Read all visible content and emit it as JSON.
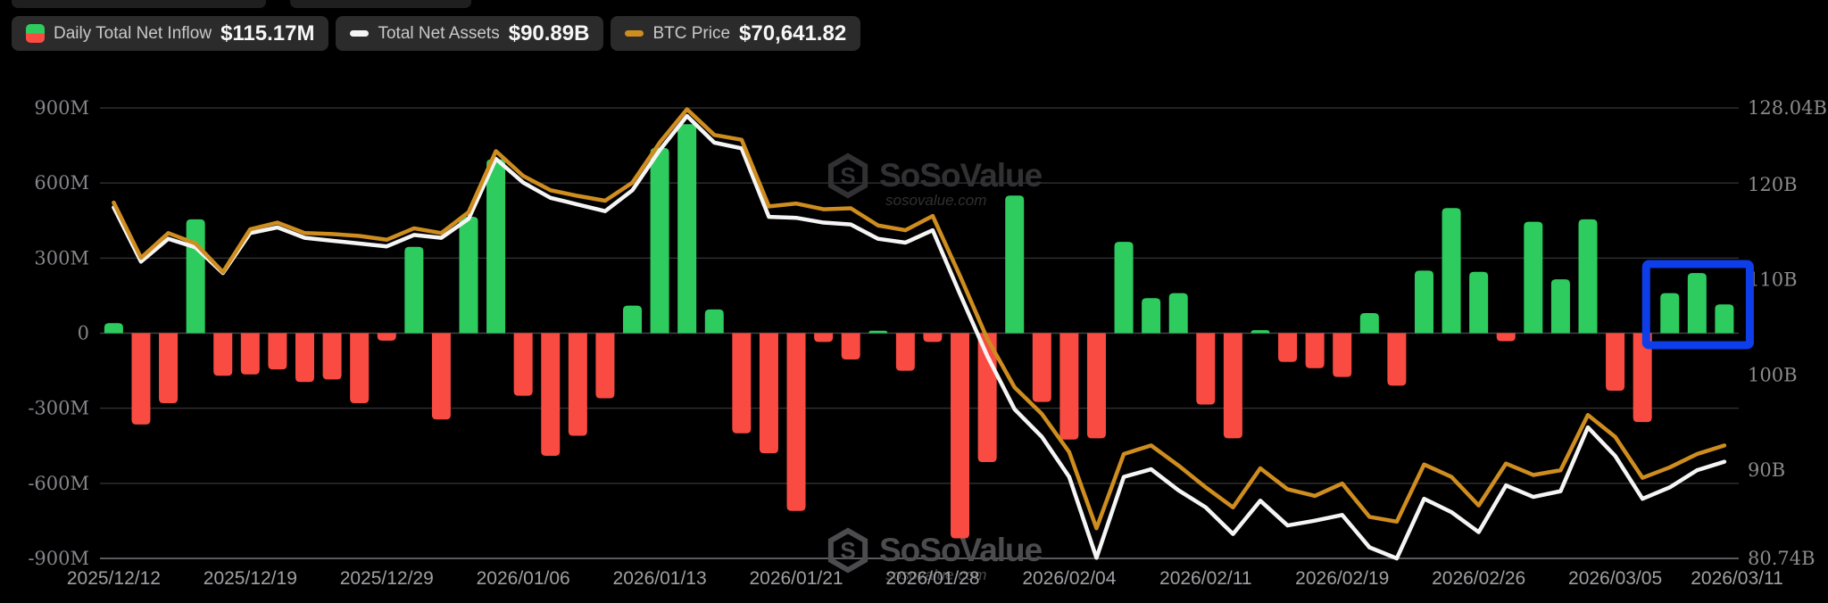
{
  "legend": {
    "items": [
      {
        "label": "Daily Total Net Inflow",
        "value": "$115.17M",
        "icon": "split-green-red-square"
      },
      {
        "label": "Total Net Assets",
        "value": "$90.89B",
        "icon": "white-dash"
      },
      {
        "label": "BTC Price",
        "value": "$70,641.82",
        "icon": "orange-dash"
      }
    ]
  },
  "watermark": {
    "text": "SoSoValue",
    "subtext": "sosovalue.com"
  },
  "colors": {
    "green": "#2ecc5f",
    "red": "#fa4b42",
    "btc_line": "#cf8d1f",
    "assets_line": "#f5f5f5",
    "highlight_blue": "#0d3eea",
    "grid": "#2e2e31",
    "zero_grid": "#414144",
    "axis_line": "#5a5a5e",
    "left_tick_text": "#85858a",
    "right_tick_text": "#8b8b8e",
    "date_text": "#a0a0a4",
    "watermark_top": "#313134",
    "watermark_bottom": "#4c4c4f"
  },
  "chart_data": {
    "type": "bar",
    "subtype": "combo-bar-with-two-lines",
    "grid": true,
    "legend_position": "top-left",
    "bar_series": {
      "name": "Daily Total Net Inflow",
      "unit": "M USD",
      "values": [
        40,
        -365,
        -280,
        455,
        -170,
        -165,
        -145,
        -195,
        -185,
        -280,
        -30,
        345,
        -345,
        465,
        695,
        -250,
        -490,
        -410,
        -260,
        110,
        740,
        835,
        95,
        -400,
        -480,
        -710,
        -35,
        -105,
        10,
        -150,
        -35,
        -820,
        -515,
        550,
        -275,
        -425,
        -420,
        365,
        140,
        160,
        -285,
        -420,
        12,
        -115,
        -140,
        -175,
        80,
        -210,
        250,
        500,
        245,
        -32,
        445,
        215,
        455,
        -230,
        -355,
        160,
        240,
        115.17
      ]
    },
    "line_series": [
      {
        "name": "Total Net Assets",
        "axis": "right",
        "unit": "B USD",
        "values": [
          117.6,
          111.9,
          114.3,
          113.4,
          110.7,
          114.9,
          115.5,
          114.4,
          114.1,
          113.8,
          113.5,
          114.7,
          114.4,
          116.4,
          122.7,
          120.2,
          118.6,
          117.9,
          117.2,
          119.4,
          123.6,
          127.2,
          124.4,
          123.8,
          116.6,
          116.5,
          116.0,
          115.8,
          114.3,
          113.9,
          115.2,
          108.5,
          102.0,
          96.4,
          93.5,
          89.3,
          80.8,
          89.3,
          90.1,
          87.9,
          86.1,
          83.3,
          86.8,
          84.2,
          84.7,
          85.3,
          81.9,
          80.74,
          87.0,
          85.6,
          83.5,
          88.4,
          87.2,
          87.8,
          94.5,
          91.5,
          87.0,
          88.2,
          90.0,
          90.89
        ]
      },
      {
        "name": "BTC Price",
        "axis": "right-equivalent-position",
        "unit": "plotted on hidden scale, last value $70,641.82",
        "values": [
          118.1,
          112.3,
          114.9,
          113.8,
          110.8,
          115.3,
          116.0,
          114.9,
          114.8,
          114.6,
          114.2,
          115.4,
          114.9,
          117.1,
          123.5,
          120.9,
          119.4,
          118.8,
          118.3,
          120.2,
          124.4,
          127.9,
          125.2,
          124.7,
          117.7,
          118.0,
          117.4,
          117.5,
          115.7,
          115.2,
          116.7,
          110.4,
          103.8,
          98.7,
          95.9,
          91.9,
          83.9,
          91.7,
          92.6,
          90.5,
          88.2,
          86.1,
          90.2,
          88.0,
          87.3,
          88.6,
          85.1,
          84.6,
          90.6,
          89.3,
          86.3,
          90.7,
          89.5,
          90.0,
          95.8,
          93.5,
          89.2,
          90.3,
          91.7,
          92.6
        ]
      }
    ],
    "x_ticks": [
      {
        "index": 0,
        "label": "2025/12/12"
      },
      {
        "index": 5,
        "label": "2025/12/19"
      },
      {
        "index": 10,
        "label": "2025/12/29"
      },
      {
        "index": 15,
        "label": "2026/01/06"
      },
      {
        "index": 20,
        "label": "2026/01/13"
      },
      {
        "index": 25,
        "label": "2026/01/21"
      },
      {
        "index": 30,
        "label": "2026/01/28"
      },
      {
        "index": 35,
        "label": "2026/02/04"
      },
      {
        "index": 40,
        "label": "2026/02/11"
      },
      {
        "index": 45,
        "label": "2026/02/19"
      },
      {
        "index": 50,
        "label": "2026/02/26"
      },
      {
        "index": 55,
        "label": "2026/03/05"
      },
      {
        "index": 59,
        "label": "2026/03/11"
      }
    ],
    "left_axis": {
      "range": [
        -900,
        900
      ],
      "ticks": [
        {
          "value": 900,
          "label": "900M"
        },
        {
          "value": 600,
          "label": "600M"
        },
        {
          "value": 300,
          "label": "300M"
        },
        {
          "value": 0,
          "label": "0"
        },
        {
          "value": -300,
          "label": "-300M"
        },
        {
          "value": -600,
          "label": "-600M"
        },
        {
          "value": -900,
          "label": "-900M"
        }
      ]
    },
    "right_axis": {
      "range": [
        80.74,
        128.04
      ],
      "ticks": [
        {
          "value": 128.04,
          "label": "128.04B"
        },
        {
          "value": 120,
          "label": "120B"
        },
        {
          "value": 110,
          "label": "110B"
        },
        {
          "value": 100,
          "label": "100B"
        },
        {
          "value": 90,
          "label": "90B"
        },
        {
          "value": 80.74,
          "label": "80.74B"
        }
      ]
    },
    "highlight": {
      "type": "box-annotation",
      "bar_indices": [
        57,
        58,
        59
      ]
    }
  }
}
